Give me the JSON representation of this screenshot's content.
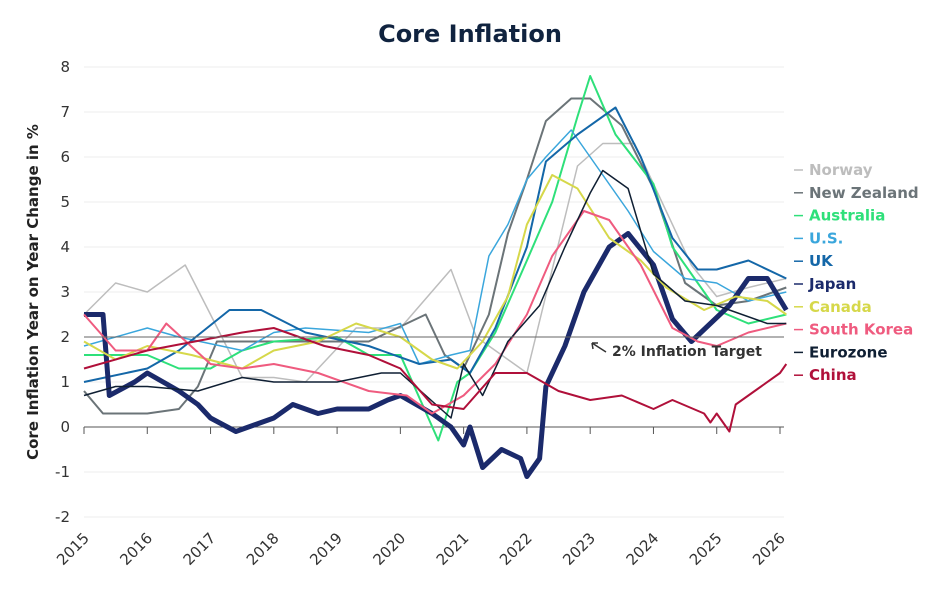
{
  "chart_data": {
    "type": "line",
    "title": "Core Inflation",
    "xlabel": "",
    "ylabel": "Core Inflation Year on Year Change in %",
    "xlim": [
      2015,
      2026.2
    ],
    "ylim": [
      -2,
      8
    ],
    "xticks": [
      "2015",
      "2016",
      "2017",
      "2018",
      "2019",
      "2020",
      "2021",
      "2022",
      "2023",
      "2024",
      "2025",
      "2026"
    ],
    "yticks": [
      "-2",
      "-1",
      "0",
      "1",
      "2",
      "3",
      "4",
      "5",
      "6",
      "7",
      "8"
    ],
    "grid": true,
    "legend": "right",
    "reference_line": {
      "y": 2,
      "label": "2% Inflation Target"
    },
    "series": [
      {
        "name": "Norway",
        "color": "#bdbdbd",
        "width": 1.5,
        "x": [
          2015,
          2015.5,
          2016,
          2016.6,
          2017,
          2017.5,
          2018,
          2018.5,
          2019.3,
          2020,
          2020.8,
          2021.2,
          2021.7,
          2022,
          2022.4,
          2022.8,
          2023.2,
          2023.7,
          2024,
          2024.6,
          2025,
          2025.5,
          2026.1
        ],
        "y": [
          2.5,
          3.2,
          3.0,
          3.6,
          2.5,
          1.1,
          1.1,
          1.0,
          2.2,
          2.2,
          3.5,
          2.0,
          1.5,
          1.2,
          3.5,
          5.8,
          6.3,
          6.3,
          5.4,
          3.6,
          2.9,
          3.1,
          3.3
        ]
      },
      {
        "name": "New Zealand",
        "color": "#6b7478",
        "width": 2,
        "x": [
          2015,
          2015.3,
          2016,
          2016.5,
          2016.8,
          2017.1,
          2019.5,
          2020.4,
          2020.7,
          2021,
          2021.4,
          2021.7,
          2022,
          2022.3,
          2022.7,
          2023.0,
          2023.5,
          2024,
          2024.5,
          2025,
          2025.5,
          2026.1
        ],
        "y": [
          0.8,
          0.3,
          0.3,
          0.4,
          0.9,
          1.9,
          1.9,
          2.5,
          1.6,
          1.3,
          2.5,
          4.3,
          5.5,
          6.8,
          7.3,
          7.3,
          6.7,
          5.3,
          3.2,
          2.7,
          2.8,
          3.1
        ]
      },
      {
        "name": "Australia",
        "color": "#2ee07a",
        "width": 2,
        "x": [
          2015,
          2016,
          2016.5,
          2017,
          2017.5,
          2018,
          2019,
          2019.5,
          2020,
          2020.6,
          2020.9,
          2021.1,
          2021.5,
          2022,
          2022.4,
          2022.8,
          2023.0,
          2023.4,
          2024,
          2024.3,
          2024.8,
          2025,
          2025.5,
          2026.1
        ],
        "y": [
          1.6,
          1.6,
          1.3,
          1.3,
          1.7,
          1.9,
          2.0,
          1.6,
          1.6,
          -0.3,
          1.0,
          1.2,
          2.1,
          3.7,
          5.0,
          6.9,
          7.8,
          6.5,
          5.4,
          4.0,
          3.0,
          2.6,
          2.3,
          2.5
        ]
      },
      {
        "name": "U.S.",
        "color": "#3aa6dc",
        "width": 1.5,
        "x": [
          2015,
          2016,
          2016.5,
          2017.5,
          2018,
          2018.5,
          2019.5,
          2020,
          2020.3,
          2020.8,
          2021.1,
          2021.4,
          2021.7,
          2022,
          2022.3,
          2022.7,
          2023.2,
          2023.6,
          2024,
          2024.5,
          2025,
          2025.5,
          2026.1
        ],
        "y": [
          1.8,
          2.2,
          2.0,
          1.7,
          2.1,
          2.2,
          2.1,
          2.3,
          1.4,
          1.6,
          1.7,
          3.8,
          4.5,
          5.5,
          6.0,
          6.6,
          5.6,
          4.8,
          3.9,
          3.3,
          3.2,
          2.8,
          3.0
        ]
      },
      {
        "name": "UK",
        "color": "#1467a8",
        "width": 2,
        "x": [
          2015,
          2016,
          2016.5,
          2017.3,
          2017.8,
          2018.5,
          2019.5,
          2020.3,
          2020.8,
          2021.1,
          2021.5,
          2022,
          2022.3,
          2022.8,
          2023.4,
          2023.8,
          2024.3,
          2024.7,
          2025,
          2025.5,
          2026.1
        ],
        "y": [
          1.0,
          1.3,
          1.7,
          2.6,
          2.6,
          2.1,
          1.8,
          1.4,
          1.5,
          1.2,
          2.2,
          4.0,
          5.9,
          6.5,
          7.1,
          6.0,
          4.2,
          3.5,
          3.5,
          3.7,
          3.3
        ]
      },
      {
        "name": "Japan",
        "color": "#1b2a6b",
        "width": 5,
        "x": [
          2015,
          2015.3,
          2015.4,
          2015.8,
          2016,
          2016.5,
          2016.8,
          2017,
          2017.4,
          2017.6,
          2018,
          2018.3,
          2018.7,
          2019,
          2019.5,
          2019.8,
          2020,
          2020.5,
          2020.8,
          2021,
          2021.1,
          2021.3,
          2021.6,
          2021.9,
          2022.0,
          2022.2,
          2022.3,
          2022.6,
          2022.9,
          2023.3,
          2023.6,
          2024,
          2024.3,
          2024.6,
          2024.9,
          2025.2,
          2025.5,
          2025.8,
          2026.1
        ],
        "y": [
          2.5,
          2.5,
          0.7,
          1.0,
          1.2,
          0.8,
          0.5,
          0.2,
          -0.1,
          0,
          0.2,
          0.5,
          0.3,
          0.4,
          0.4,
          0.6,
          0.7,
          0.3,
          0,
          -0.4,
          0,
          -0.9,
          -0.5,
          -0.7,
          -1.1,
          -0.7,
          0.9,
          1.8,
          3.0,
          4.0,
          4.3,
          3.6,
          2.4,
          1.9,
          2.3,
          2.7,
          3.3,
          3.3,
          2.6
        ]
      },
      {
        "name": "Canada",
        "color": "#d6d84a",
        "width": 2,
        "x": [
          2015,
          2015.5,
          2016,
          2016.7,
          2017.5,
          2018,
          2018.7,
          2019.3,
          2020,
          2020.5,
          2020.9,
          2021.3,
          2021.7,
          2022,
          2022.4,
          2022.8,
          2023.3,
          2023.8,
          2024.2,
          2024.8,
          2025.3,
          2025.8,
          2026.1
        ],
        "y": [
          1.9,
          1.5,
          1.8,
          1.6,
          1.3,
          1.7,
          1.9,
          2.3,
          2.0,
          1.5,
          1.3,
          1.9,
          2.9,
          4.5,
          5.6,
          5.3,
          4.2,
          3.7,
          3.1,
          2.6,
          2.9,
          2.8,
          2.5
        ]
      },
      {
        "name": "South Korea",
        "color": "#ef5b7f",
        "width": 2,
        "x": [
          2015,
          2015.5,
          2016,
          2016.3,
          2017,
          2017.5,
          2018,
          2018.7,
          2019.5,
          2020.1,
          2020.5,
          2021,
          2021.5,
          2022,
          2022.4,
          2022.9,
          2023.3,
          2023.8,
          2024.3,
          2024.7,
          2025,
          2025.5,
          2026.1
        ],
        "y": [
          2.5,
          1.7,
          1.7,
          2.3,
          1.4,
          1.3,
          1.4,
          1.2,
          0.8,
          0.7,
          0.3,
          0.7,
          1.4,
          2.5,
          3.8,
          4.8,
          4.6,
          3.6,
          2.2,
          1.9,
          1.8,
          2.1,
          2.3
        ]
      },
      {
        "name": "Eurozone",
        "color": "#0f1f33",
        "width": 1.5,
        "x": [
          2015,
          2015.5,
          2016,
          2016.8,
          2017.5,
          2018,
          2019,
          2019.7,
          2020,
          2020.8,
          2021,
          2021.3,
          2021.7,
          2022.2,
          2022.6,
          2023.0,
          2023.2,
          2023.6,
          2024,
          2024.5,
          2025,
          2025.8,
          2026.1
        ],
        "y": [
          0.7,
          0.9,
          0.9,
          0.8,
          1.1,
          1.0,
          1.0,
          1.2,
          1.2,
          0.2,
          1.4,
          0.7,
          1.9,
          2.7,
          4.0,
          5.2,
          5.7,
          5.3,
          3.4,
          2.8,
          2.7,
          2.3,
          2.3
        ]
      },
      {
        "name": "China",
        "color": "#b0103a",
        "width": 2,
        "x": [
          2015,
          2016,
          2017.5,
          2018,
          2018.8,
          2019.5,
          2020,
          2020.5,
          2021,
          2021.5,
          2022,
          2022.5,
          2023,
          2023.5,
          2024,
          2024.3,
          2024.8,
          2024.9,
          2025,
          2025.2,
          2025.3,
          2025.6,
          2026,
          2026.1
        ],
        "y": [
          1.3,
          1.7,
          2.1,
          2.2,
          1.8,
          1.6,
          1.3,
          0.5,
          0.4,
          1.2,
          1.2,
          0.8,
          0.6,
          0.7,
          0.4,
          0.6,
          0.3,
          0.1,
          0.3,
          -0.1,
          0.5,
          0.8,
          1.2,
          1.4
        ]
      }
    ]
  }
}
